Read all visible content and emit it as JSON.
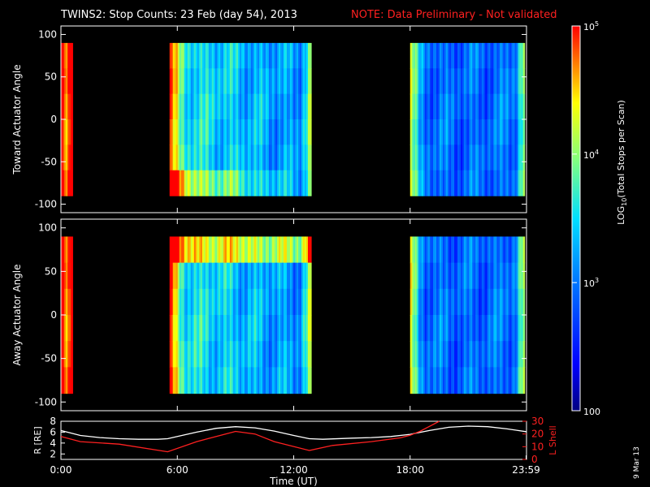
{
  "header": {
    "title": "TWINS2: Stop Counts: 23 Feb (day  54), 2013",
    "note": "NOTE: Data Preliminary - Not validated",
    "note_color": "#ff2020"
  },
  "chart_data": [
    {
      "type": "heatmap",
      "ylabel": "Toward Actuator Angle",
      "ylim": [
        -110,
        110
      ],
      "yticks": [
        "100",
        "50",
        "0",
        "-50",
        "-100"
      ],
      "ytick_values": [
        100,
        50,
        0,
        -50,
        -100
      ],
      "data_angle_range": [
        -90,
        90
      ],
      "xlim_hours": [
        0,
        24
      ],
      "segments": [
        {
          "start_hour": 0.0,
          "end_hour": 0.6,
          "level": 0.88
        },
        {
          "start_hour": 5.6,
          "end_hour": 12.9,
          "level": 0.55
        },
        {
          "start_hour": 18.0,
          "end_hour": 23.9,
          "level": 0.35
        }
      ]
    },
    {
      "type": "heatmap",
      "ylabel": "Away Actuator Angle",
      "ylim": [
        -110,
        110
      ],
      "yticks": [
        "100",
        "50",
        "0",
        "-50",
        "-100"
      ],
      "ytick_values": [
        100,
        50,
        0,
        -50,
        -100
      ],
      "data_angle_range": [
        -90,
        90
      ],
      "xlim_hours": [
        0,
        24
      ],
      "segments": [
        {
          "start_hour": 0.0,
          "end_hour": 0.6,
          "level": 0.88
        },
        {
          "start_hour": 5.6,
          "end_hour": 12.9,
          "level": 0.55
        },
        {
          "start_hour": 18.0,
          "end_hour": 23.9,
          "level": 0.35
        }
      ]
    },
    {
      "type": "line",
      "ylabel": "R [RE]",
      "ylim": [
        1,
        8
      ],
      "yticks": [
        "8",
        "6",
        "4",
        "2"
      ],
      "ytick_values": [
        8,
        6,
        4,
        2
      ],
      "y2label": "L Shell",
      "y2lim": [
        0,
        30
      ],
      "y2ticks": [
        "30",
        "20",
        "10",
        "0"
      ],
      "y2tick_values": [
        30,
        20,
        10,
        0
      ],
      "y2_color": "#ff2020",
      "xlabel": "Time (UT)",
      "xticks": [
        "0:00",
        "6:00",
        "12:00",
        "18:00",
        "23:59"
      ],
      "xtick_hours": [
        0,
        6,
        12,
        18,
        23.98
      ],
      "series": [
        {
          "axis": "left",
          "color": "#ffffff",
          "x": [
            0,
            1,
            2,
            3,
            4,
            5,
            5.5,
            6,
            7,
            8,
            9,
            10,
            11,
            12,
            12.8,
            13.5,
            15,
            16,
            17,
            18,
            19,
            20,
            21,
            22,
            23,
            23.98
          ],
          "y": [
            6.3,
            5.4,
            5.0,
            4.8,
            4.7,
            4.7,
            4.8,
            5.2,
            6.0,
            6.7,
            7.0,
            6.8,
            6.2,
            5.4,
            4.8,
            4.7,
            4.9,
            5.0,
            5.2,
            5.6,
            6.3,
            6.9,
            7.1,
            7.0,
            6.6,
            6.1
          ]
        },
        {
          "axis": "right",
          "color": "#ff2020",
          "x": [
            0,
            1,
            3,
            5.5,
            7,
            9,
            10,
            11,
            12.8,
            14,
            16,
            17.5,
            18,
            18.5,
            19,
            19.5
          ],
          "y": [
            18,
            14,
            12,
            6,
            14,
            22,
            20,
            14,
            7,
            11,
            14,
            17,
            19,
            22,
            26,
            30
          ]
        }
      ]
    }
  ],
  "colorbar": {
    "label": "LOG10(Total Stops per Scan)",
    "label_base": "LOG",
    "label_sub": "10",
    "label_rest": "(Total Stops per Scan)",
    "ticks": [
      {
        "label": "10",
        "sup": "5",
        "frac": 1.0
      },
      {
        "label": "10",
        "sup": "4",
        "frac": 0.667
      },
      {
        "label": "10",
        "sup": "3",
        "frac": 0.333
      },
      {
        "label": "100",
        "sup": "",
        "frac": 0.0
      }
    ]
  },
  "footer": {
    "date_stamp": "9 Mar 13"
  }
}
